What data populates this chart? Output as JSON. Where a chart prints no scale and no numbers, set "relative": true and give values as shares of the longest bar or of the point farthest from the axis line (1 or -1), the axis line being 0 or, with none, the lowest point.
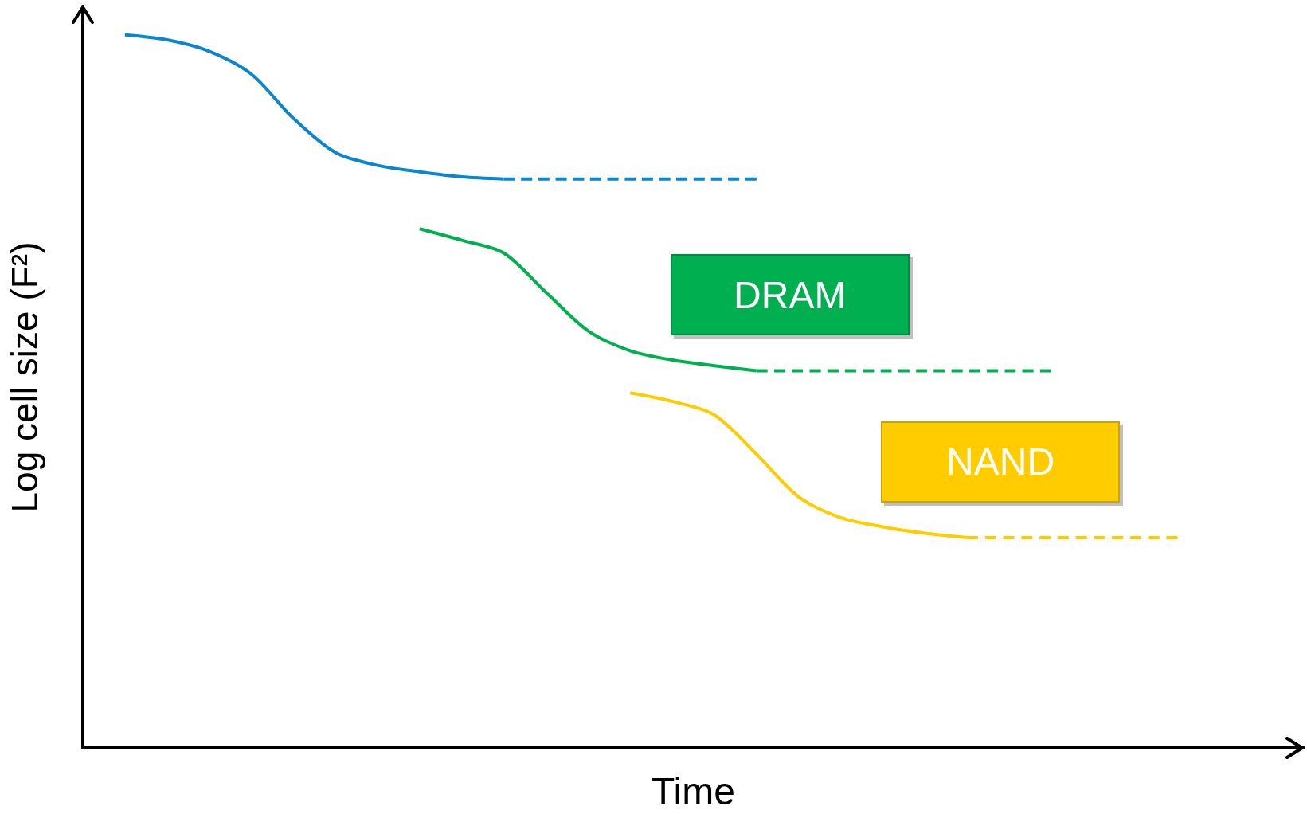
{
  "chart_data": {
    "type": "line",
    "relative": true,
    "xlabel": "Time",
    "ylabel": "Log cell size (F²)",
    "legend": false,
    "grid": false,
    "marker": "none",
    "categories": [
      null,
      null,
      null,
      null,
      null,
      null,
      null,
      null,
      null,
      null,
      null,
      null,
      null,
      null,
      null,
      null,
      null,
      null,
      null,
      null,
      null,
      null,
      null,
      null,
      null,
      null,
      null,
      null,
      null,
      null
    ],
    "series": [
      {
        "color": "#0a85d0",
        "line_style": "solid",
        "values": [
          null,
          1.0,
          0.993,
          0.977,
          0.945,
          0.883,
          0.835,
          0.817,
          0.808,
          0.801,
          0.798,
          null,
          null,
          null,
          null,
          null,
          null,
          null,
          null,
          null,
          null,
          null,
          null,
          null,
          null,
          null,
          null,
          null,
          null,
          null
        ]
      },
      {
        "color": "#0a85d0",
        "line_style": "dashed",
        "values": [
          null,
          null,
          null,
          null,
          null,
          null,
          null,
          null,
          null,
          null,
          0.798,
          0.798,
          0.798,
          0.798,
          0.798,
          0.798,
          0.798,
          null,
          null,
          null,
          null,
          null,
          null,
          null,
          null,
          null,
          null,
          null,
          null,
          null
        ]
      },
      {
        "name": "DRAM",
        "color": "#00b050",
        "line_style": "solid",
        "values": [
          null,
          null,
          null,
          null,
          null,
          null,
          null,
          null,
          0.728,
          0.712,
          0.694,
          0.639,
          0.585,
          0.557,
          0.544,
          0.536,
          0.529,
          null,
          null,
          null,
          null,
          null,
          null,
          null,
          null,
          null,
          null,
          null,
          null,
          null
        ]
      },
      {
        "color": "#00b050",
        "line_style": "dashed",
        "values": [
          null,
          null,
          null,
          null,
          null,
          null,
          null,
          null,
          null,
          null,
          null,
          null,
          null,
          null,
          null,
          null,
          0.529,
          0.529,
          0.529,
          0.529,
          0.529,
          0.529,
          0.529,
          0.529,
          null,
          null,
          null,
          null,
          null,
          null
        ]
      },
      {
        "name": "NAND",
        "color": "#ffcc00",
        "line_style": "solid",
        "values": [
          null,
          null,
          null,
          null,
          null,
          null,
          null,
          null,
          null,
          null,
          null,
          null,
          null,
          0.498,
          0.486,
          0.467,
          0.412,
          0.352,
          0.323,
          0.31,
          0.301,
          0.295,
          null,
          null,
          null,
          null,
          null,
          null,
          null,
          null
        ]
      },
      {
        "color": "#ffcc00",
        "line_style": "dashed",
        "values": [
          null,
          null,
          null,
          null,
          null,
          null,
          null,
          null,
          null,
          null,
          null,
          null,
          null,
          null,
          null,
          null,
          null,
          null,
          null,
          null,
          null,
          0.295,
          0.295,
          0.295,
          0.295,
          0.295,
          0.295,
          null,
          null,
          null
        ]
      }
    ]
  }
}
